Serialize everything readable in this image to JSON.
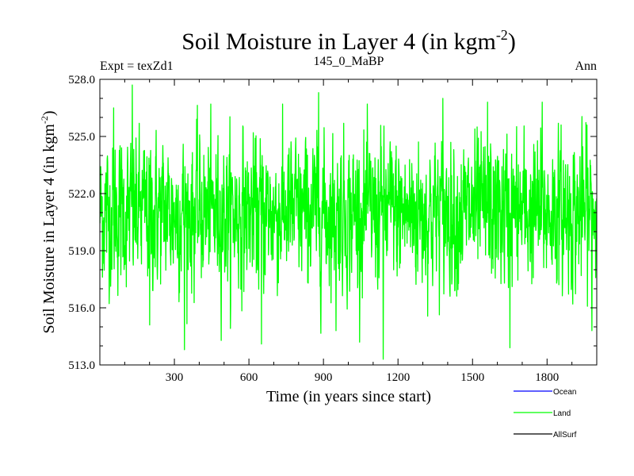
{
  "chart_data": {
    "type": "line",
    "title_main": "Soil Moisture in Layer 4 (in kgm",
    "title_sup": "-2",
    "title_end": ")",
    "subtitle_left": "Expt = texZd1",
    "subtitle_center": "145_0_MaBP",
    "subtitle_right": "Ann",
    "xlabel": "Time (in years since start)",
    "ylabel_main": "Soil Moisture in Layer 4 (in kgm",
    "ylabel_sup": "-2",
    "ylabel_end": ")",
    "xlim": [
      0,
      2000
    ],
    "ylim": [
      513.0,
      528.0
    ],
    "xticks": [
      300,
      600,
      900,
      1200,
      1500,
      1800
    ],
    "xtick_labels": [
      "300",
      "600",
      "900",
      "1200",
      "1500",
      "1800"
    ],
    "yticks": [
      513.0,
      516.0,
      519.0,
      522.0,
      525.0,
      528.0
    ],
    "ytick_labels": [
      "513.0",
      "516.0",
      "519.0",
      "522.0",
      "525.0",
      "528.0"
    ],
    "legend": [
      {
        "name": "Ocean",
        "color": "#0000ff"
      },
      {
        "name": "Land",
        "color": "#00ff00"
      },
      {
        "name": "AllSurf",
        "color": "#000000"
      }
    ],
    "series": [
      {
        "name": "Land",
        "color": "#00ff00",
        "mean": 521.0,
        "sigma": 1.9,
        "n_points": 2000,
        "peaks": [
          [
            130,
            527.7
          ],
          [
            880,
            527.3
          ],
          [
            1380,
            527.0
          ],
          [
            1780,
            526.8
          ],
          [
            55,
            526.5
          ],
          [
            1560,
            526.8
          ],
          [
            1960,
            525.6
          ]
        ],
        "troughs": [
          [
            340,
            513.8
          ],
          [
            1140,
            513.3
          ],
          [
            1650,
            513.9
          ],
          [
            650,
            514.1
          ],
          [
            950,
            514.8
          ],
          [
            1980,
            514.8
          ],
          [
            200,
            515.1
          ]
        ]
      }
    ]
  }
}
